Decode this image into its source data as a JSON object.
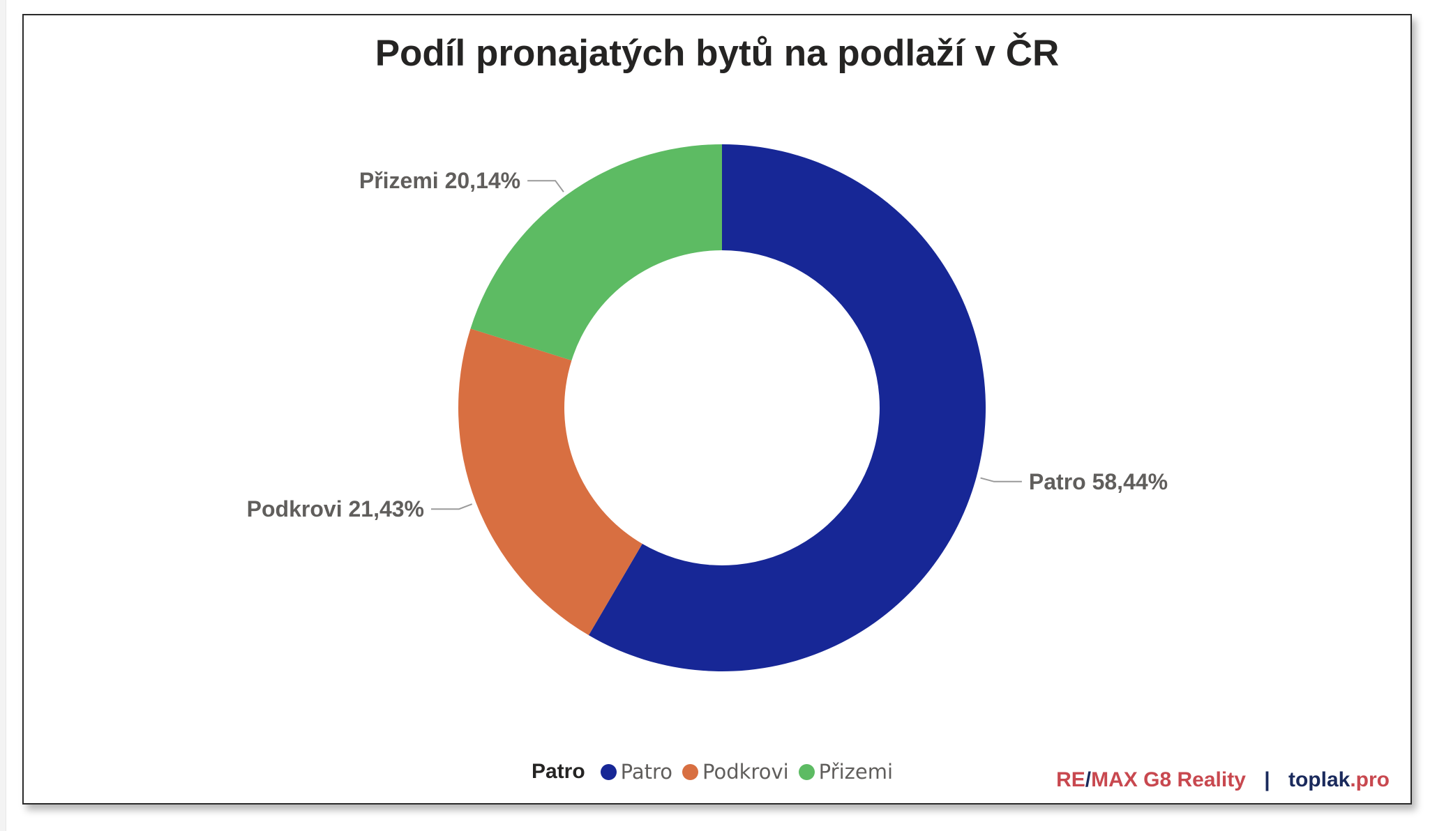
{
  "chart_data": {
    "type": "donut",
    "title": "Podíl pronajatých bytů na podlaží v ČR",
    "series": [
      {
        "category": "Patro",
        "value": 58.44,
        "label": "Patro 58,44%",
        "color": "#172796"
      },
      {
        "category": "Podkrovi",
        "value": 21.43,
        "label": "Podkrovi 21,43%",
        "color": "#d86f41"
      },
      {
        "category": "Přizemi",
        "value": 20.14,
        "label": "Přizemi 20,14%",
        "color": "#5dbb63"
      }
    ],
    "legend": {
      "title": "Patro",
      "position": "bottom-center",
      "items": [
        "Patro",
        "Podkrovi",
        "Přizemi"
      ]
    }
  },
  "branding": {
    "part1": "RE/MAX G8 Reality",
    "part1_left": "RE",
    "part1_slash": "/",
    "part1_right": "MAX G8 Reality",
    "separator": "|",
    "part2": "toplak.pro",
    "part2_left": "toplak",
    "part2_right": ".pro"
  },
  "colors": {
    "title_text": "#252423",
    "label_text": "#605e5c",
    "brand_red": "#c8484f",
    "brand_navy": "#1a2a5c"
  }
}
